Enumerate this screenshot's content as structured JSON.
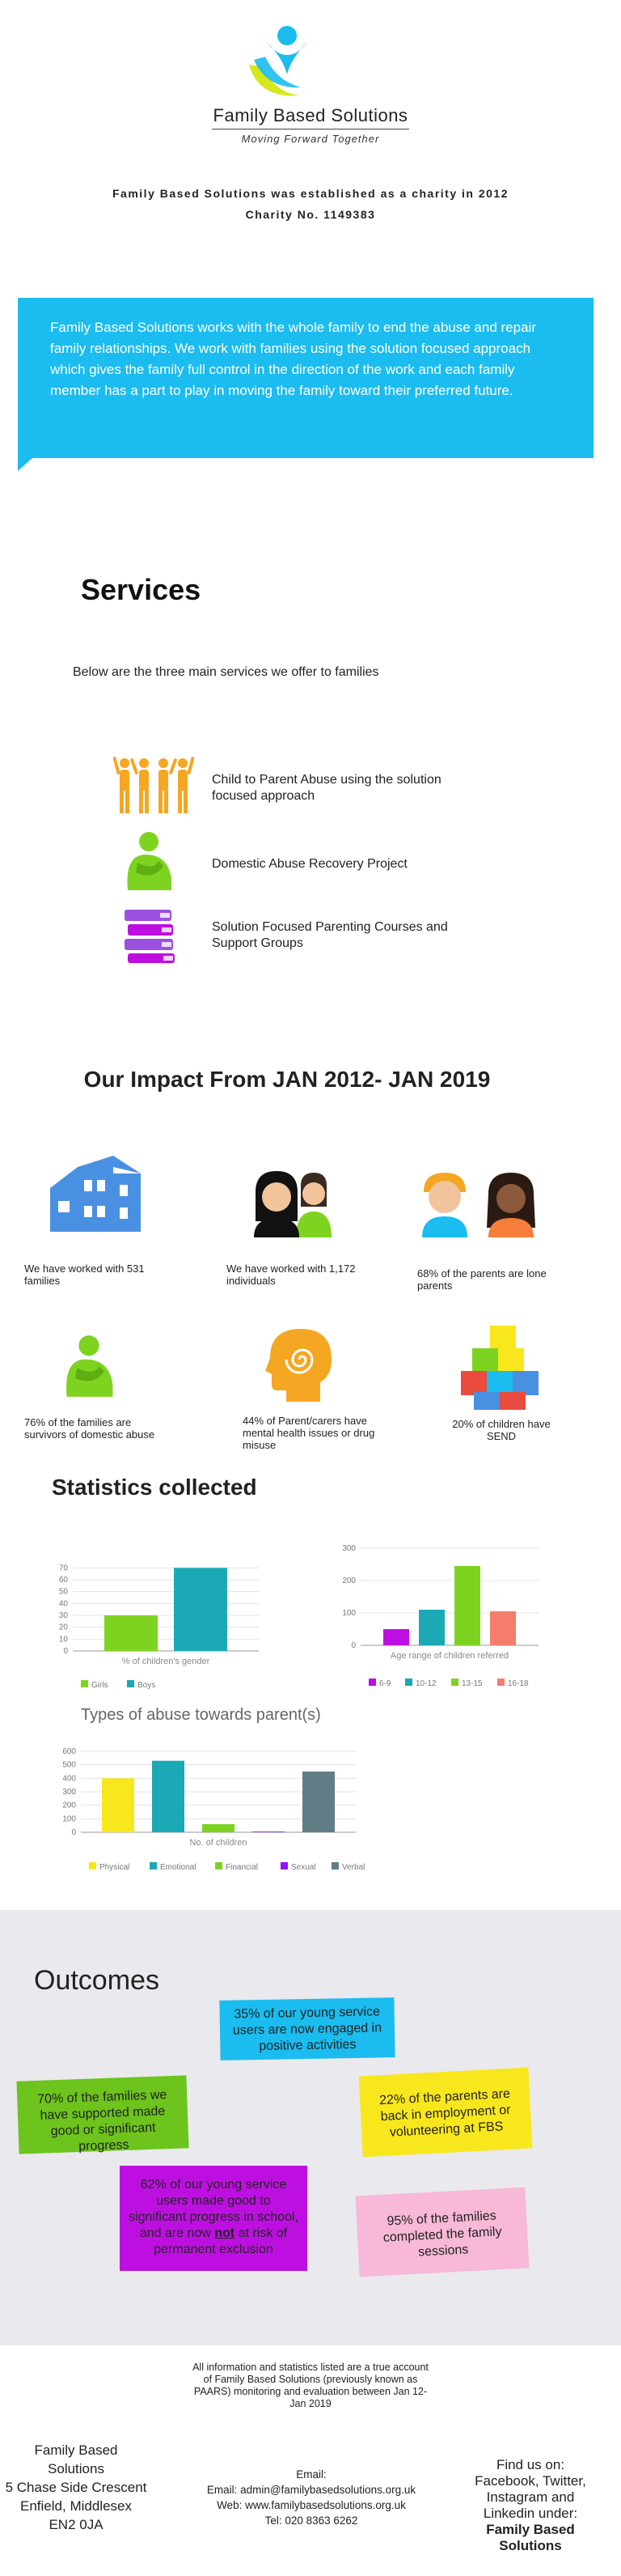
{
  "header": {
    "org_name": "Family Based Solutions",
    "tagline": "Moving Forward Together",
    "established": "Family Based Solutions was established as a charity in 2012",
    "charity_no": "Charity No. 1149383"
  },
  "intro": {
    "text": "Family Based Solutions works with the whole family to end the abuse and repair family relationships. We work with families using the solution focused approach which gives the family full control in the direction of the work and each family member has a part to play in moving the family toward their preferred future."
  },
  "services": {
    "heading": "Services",
    "subheading": "Below are the three main services we offer to families",
    "items": [
      {
        "label": "Child to Parent Abuse using the solution focused approach",
        "icon": "people-group-icon"
      },
      {
        "label": "Domestic Abuse Recovery Project",
        "icon": "distressed-person-icon"
      },
      {
        "label": "Solution Focused Parenting Courses and Support Groups",
        "icon": "books-stack-icon"
      }
    ]
  },
  "impact": {
    "heading": "Our Impact From JAN 2012- JAN 2019",
    "items": [
      {
        "text": "We have worked with 531 families",
        "icon": "houses-icon"
      },
      {
        "text": "We have worked with 1,172 individuals",
        "icon": "two-people-icon"
      },
      {
        "text": "68% of the parents are lone parents",
        "icon": "parents-icon"
      },
      {
        "text": "76% of the families are survivors of domestic abuse",
        "icon": "distressed-person-icon"
      },
      {
        "text": "44% of Parent/carers have mental health issues or drug misuse",
        "icon": "head-spiral-icon"
      },
      {
        "text": "20% of children have SEND",
        "icon": "blocks-icon"
      }
    ]
  },
  "statistics": {
    "heading": "Statistics collected"
  },
  "chart_data": [
    {
      "type": "bar",
      "title": "",
      "xlabel": "% of children's gender",
      "categories": [
        "Girls",
        "Boys"
      ],
      "values": [
        30,
        70
      ],
      "colors": [
        "#7ed321",
        "#1aa9b5"
      ],
      "yticks": [
        0,
        10,
        20,
        30,
        40,
        50,
        60,
        70
      ],
      "ylim": [
        0,
        75
      ],
      "legend": "bottom"
    },
    {
      "type": "bar",
      "title": "",
      "xlabel": "Age range of children referred",
      "categories": [
        "6-9",
        "10-12",
        "13-15",
        "16-18"
      ],
      "values": [
        50,
        110,
        245,
        105
      ],
      "colors": [
        "#bd10e0",
        "#1aa9b5",
        "#7ed321",
        "#f47e6b"
      ],
      "yticks": [
        0,
        100,
        200,
        300
      ],
      "ylim": [
        0,
        300
      ],
      "legend": "bottom"
    },
    {
      "type": "bar",
      "title": "Types of abuse towards parent(s)",
      "xlabel": "No. of children",
      "categories": [
        "Physical",
        "Emotional",
        "Financial",
        "Sexual",
        "Verbal"
      ],
      "values": [
        400,
        530,
        60,
        5,
        450
      ],
      "colors": [
        "#f8e71c",
        "#1aa9b5",
        "#7ed321",
        "#9013fe",
        "#607d85"
      ],
      "yticks": [
        0,
        100,
        200,
        300,
        400,
        500,
        600
      ],
      "ylim": [
        0,
        600
      ],
      "legend": "bottom"
    }
  ],
  "outcomes": {
    "heading": "Outcomes",
    "notes": [
      {
        "text": "35% of our young service users are now engaged in positive activities",
        "color": "#1bbcef",
        "text_color": "#222"
      },
      {
        "text": "70% of the families we have supported made good or significant progress",
        "color": "#6cc41c",
        "text_color": "#222"
      },
      {
        "text": "22% of the parents are back in employment or volunteering at FBS",
        "color": "#f8e71c",
        "text_color": "#222"
      },
      {
        "text_parts": [
          "62% of our young service users made good to significant progress in school, and are now ",
          "not",
          " at risk of permanent exclusion"
        ],
        "color": "#bd10e0",
        "text_color": "#222"
      },
      {
        "text": "95% of the families completed the family sessions",
        "color": "#f7b9d7",
        "text_color": "#222"
      }
    ]
  },
  "disclaimer": "All information and statistics listed are a true account of Family Based Solutions (previously known as PAARS) monitoring and evaluation between Jan 12-Jan 2019",
  "footer": {
    "address": [
      "Family Based",
      "Solutions",
      "5 Chase Side Crescent",
      "Enfield, Middlesex",
      "EN2 0JA"
    ],
    "email_label": "Email:",
    "email": "Email: admin@familybasedsolutions.org.uk",
    "web": "Web: www.familybasedsolutions.org.uk",
    "tel": "Tel: 020 8363 6262",
    "social": "Find us on: Facebook, Twitter, Instagram and Linkedin under:",
    "social_name": "Family Based Solutions"
  }
}
